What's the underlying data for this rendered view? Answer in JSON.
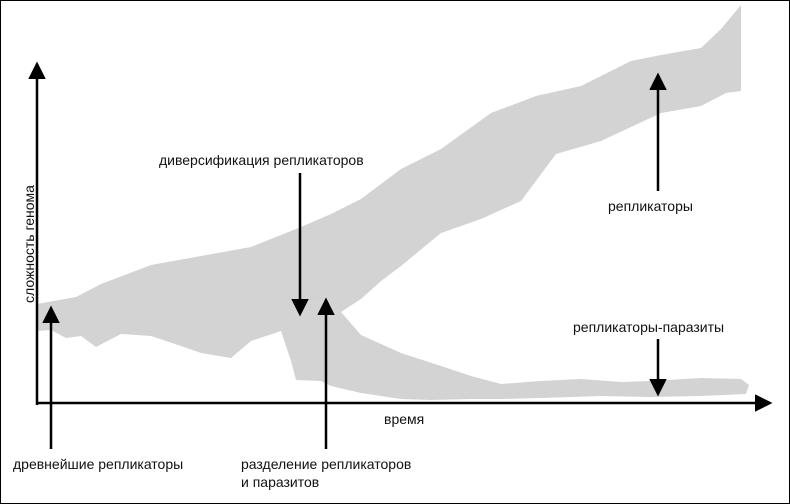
{
  "axes": {
    "y_label": "сложность генома",
    "x_label": "время"
  },
  "annotations": {
    "diversification": "диверсификация репликаторов",
    "replicators": "репликаторы",
    "parasites": "репликаторы-паразиты",
    "ancient": "древнейшие репликаторы",
    "split_line1": "разделение репликаторов",
    "split_line2": "и паразитов"
  },
  "colors": {
    "band": "#d3d3d3",
    "line": "#000000",
    "text": "#111111"
  }
}
